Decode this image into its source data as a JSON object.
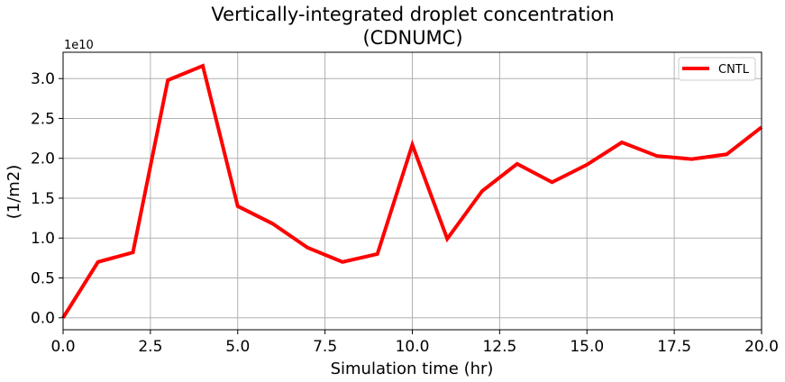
{
  "chart_data": {
    "type": "line",
    "title_lines": [
      "Vertically-integrated droplet concentration",
      "(CDNUMC)"
    ],
    "xlabel": "Simulation time (hr)",
    "ylabel": "(1/m2)",
    "y_offset_label": "1e10",
    "xlim": [
      0,
      20
    ],
    "ylim": [
      -0.15,
      3.33
    ],
    "x_ticks": [
      0,
      2.5,
      5,
      7.5,
      10,
      12.5,
      15,
      17.5,
      20
    ],
    "x_tick_labels": [
      "0.0",
      "2.5",
      "5.0",
      "7.5",
      "10.0",
      "12.5",
      "15.0",
      "17.5",
      "20.0"
    ],
    "y_ticks": [
      0,
      0.5,
      1.0,
      1.5,
      2.0,
      2.5,
      3.0
    ],
    "y_tick_labels": [
      "0.0",
      "0.5",
      "1.0",
      "1.5",
      "2.0",
      "2.5",
      "3.0"
    ],
    "grid": true,
    "legend_position": "top-right",
    "series": [
      {
        "name": "CNTL",
        "color": "#ff0000",
        "x": [
          0,
          1,
          2,
          3,
          4,
          5,
          6,
          7,
          8,
          9,
          10,
          11,
          12,
          13,
          14,
          15,
          16,
          17,
          18,
          19,
          20
        ],
        "y": [
          0.0,
          0.7,
          0.82,
          2.98,
          3.16,
          1.4,
          1.18,
          0.88,
          0.7,
          0.8,
          2.17,
          0.99,
          1.59,
          1.93,
          1.7,
          1.92,
          2.2,
          2.03,
          1.99,
          2.05,
          2.39
        ]
      }
    ]
  }
}
